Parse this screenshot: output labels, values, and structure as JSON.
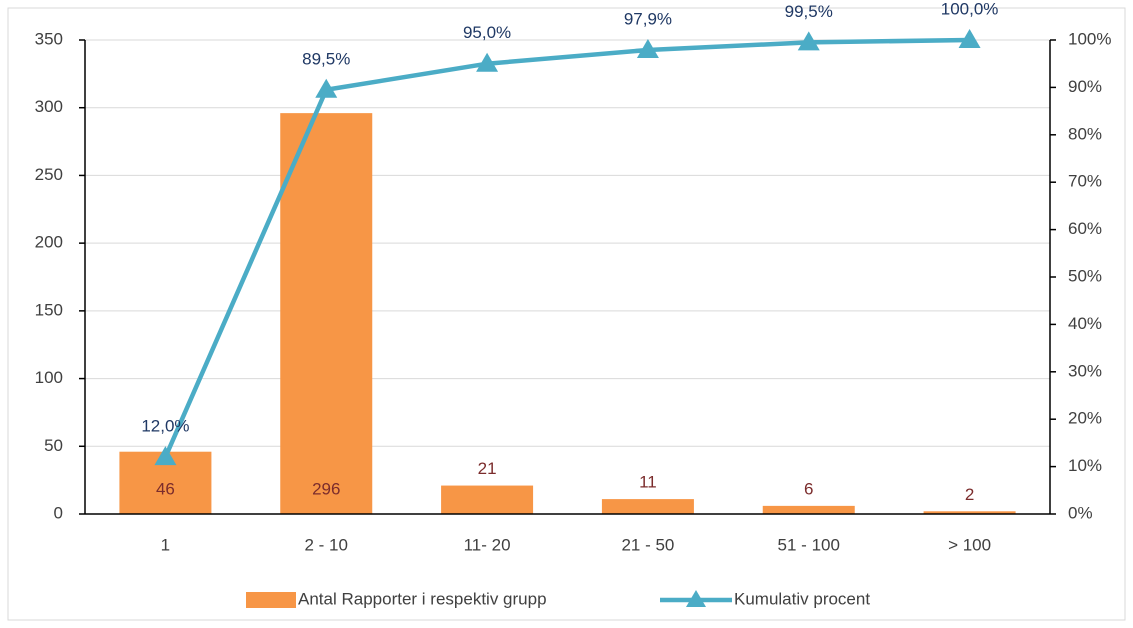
{
  "chart_data": {
    "type": "bar",
    "categories": [
      "1",
      "2 - 10",
      "11- 20",
      "21 - 50",
      "51 - 100",
      "> 100"
    ],
    "series": [
      {
        "name": "Antal Rapporter i respektiv grupp",
        "type": "bar",
        "color": "#f79646",
        "values": [
          46,
          296,
          21,
          11,
          6,
          2
        ]
      },
      {
        "name": "Kumulativ procent",
        "type": "line",
        "axis": "y2",
        "color": "#4bacc6",
        "values": [
          12.0,
          89.5,
          95.0,
          97.9,
          99.5,
          100.0
        ],
        "value_labels": [
          "12,0%",
          "89,5%",
          "95,0%",
          "97,9%",
          "99,5%",
          "100,0%"
        ]
      }
    ],
    "ylim": [
      0,
      350
    ],
    "yticks": [
      0,
      50,
      100,
      150,
      200,
      250,
      300,
      350
    ],
    "y2lim": [
      0,
      100
    ],
    "y2ticks": [
      {
        "value": 0,
        "label": "0%"
      },
      {
        "value": 10,
        "label": "10%"
      },
      {
        "value": 20,
        "label": "20%"
      },
      {
        "value": 30,
        "label": "30%"
      },
      {
        "value": 40,
        "label": "40%"
      },
      {
        "value": 50,
        "label": "50%"
      },
      {
        "value": 60,
        "label": "60%"
      },
      {
        "value": 70,
        "label": "70%"
      },
      {
        "value": 80,
        "label": "80%"
      },
      {
        "value": 90,
        "label": "90%"
      },
      {
        "value": 100,
        "label": "100%"
      }
    ],
    "grid": true,
    "legend": "bottom"
  }
}
